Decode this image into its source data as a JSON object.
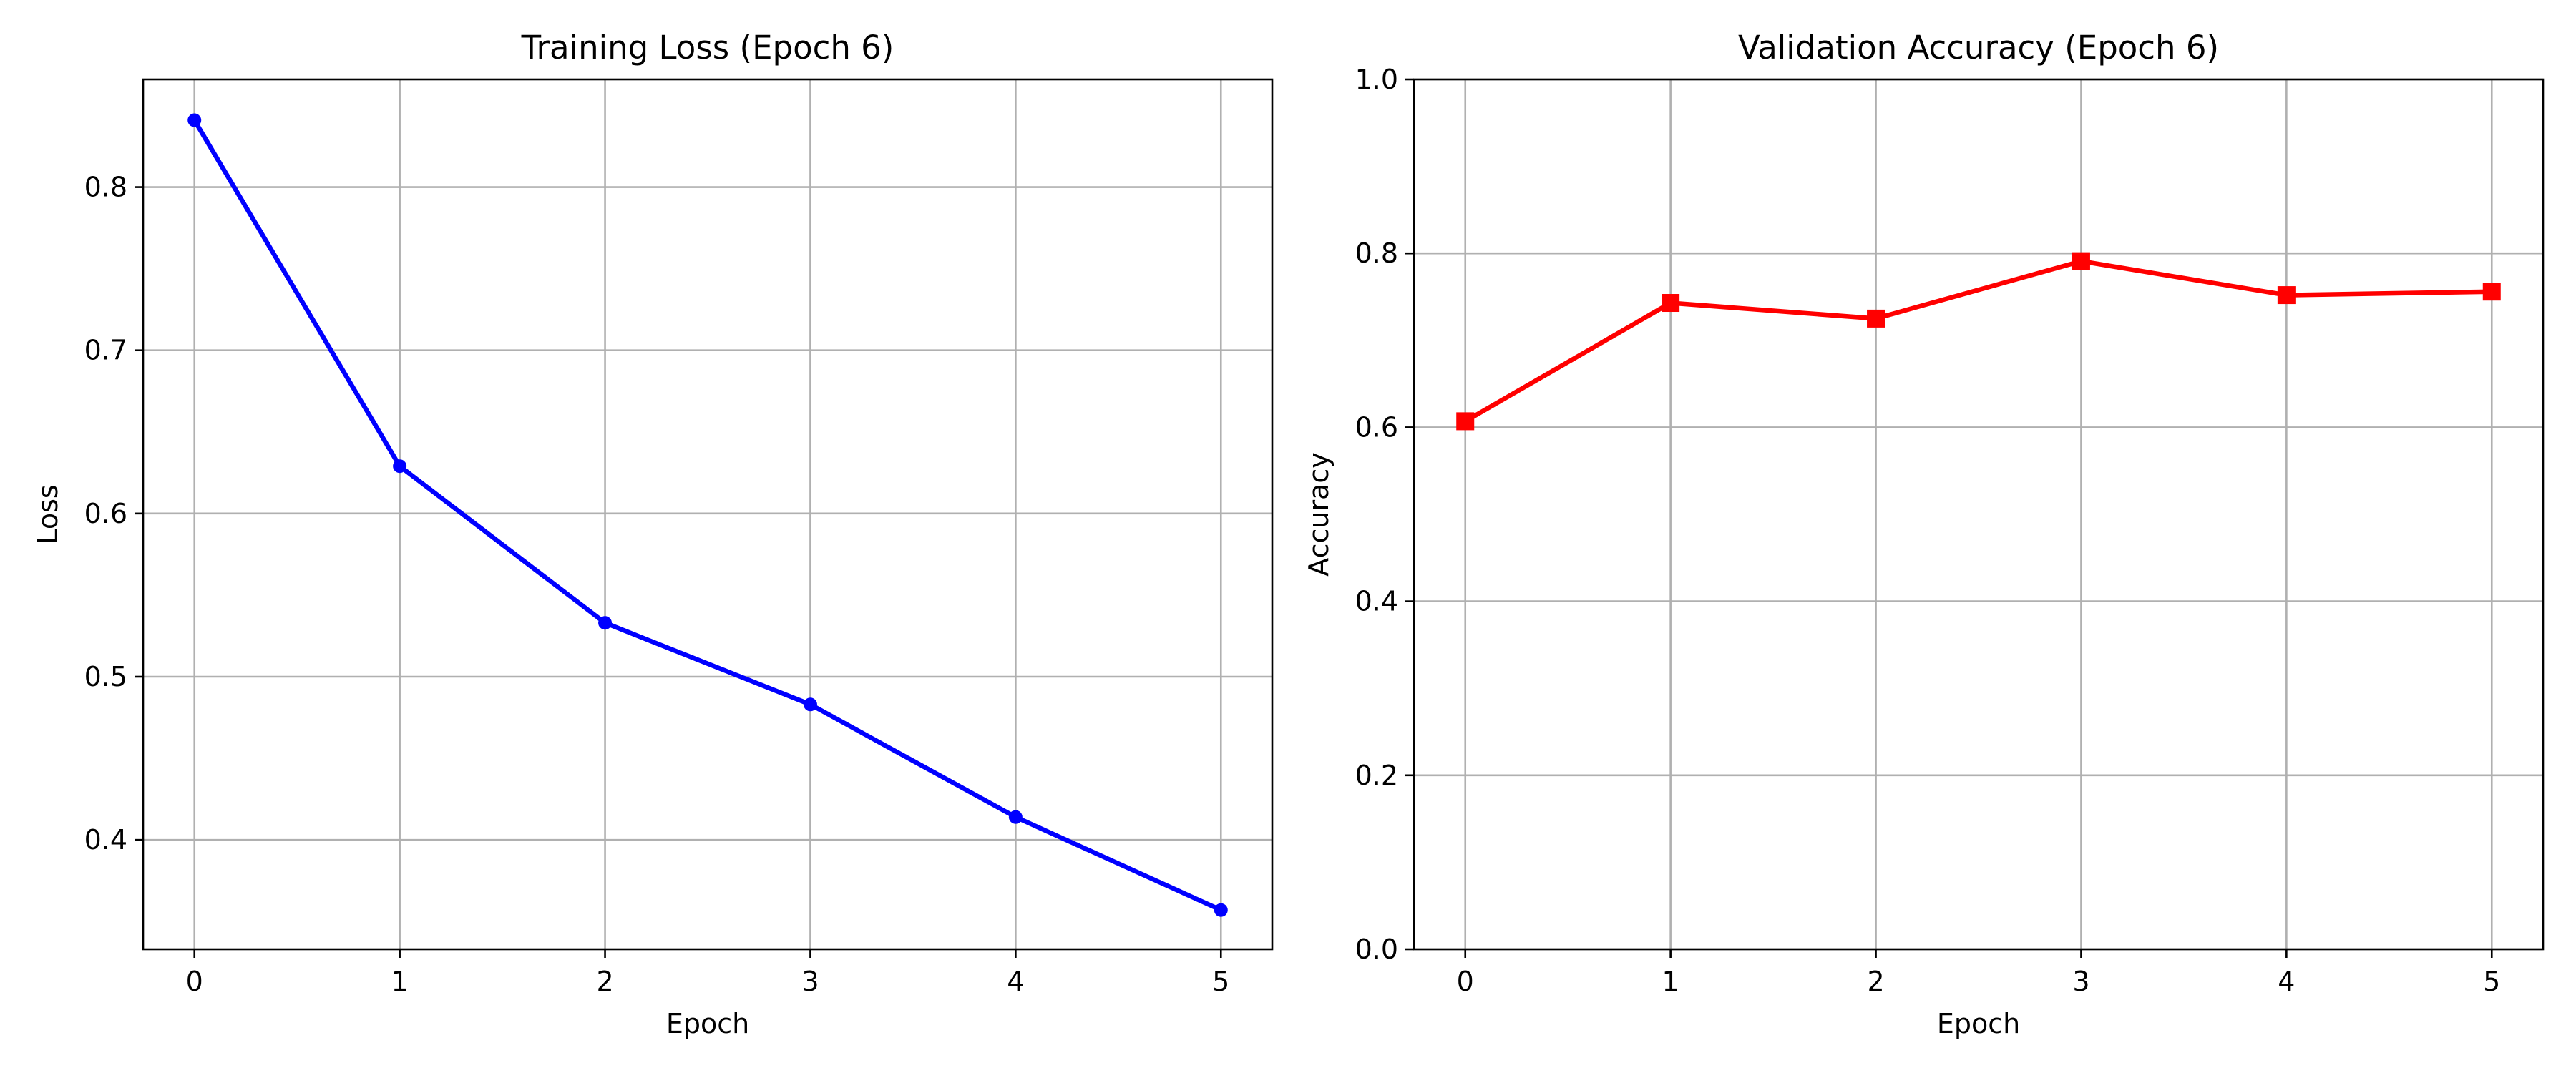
{
  "chart_data": [
    {
      "type": "line",
      "title": "Training Loss (Epoch 6)",
      "xlabel": "Epoch",
      "ylabel": "Loss",
      "x": [
        0,
        1,
        2,
        3,
        4,
        5
      ],
      "xlim": [
        -0.25,
        5.25
      ],
      "ylim": [
        0.333,
        0.866
      ],
      "xticks": [
        0,
        1,
        2,
        3,
        4,
        5
      ],
      "yticks": [
        0.4,
        0.5,
        0.6,
        0.7,
        0.8
      ],
      "ytick_labels": [
        "0.4",
        "0.5",
        "0.6",
        "0.7",
        "0.8"
      ],
      "grid": true,
      "series": [
        {
          "values": [
            0.841,
            0.629,
            0.533,
            0.483,
            0.414,
            0.357
          ],
          "color": "#0000ff",
          "marker": "circle"
        }
      ]
    },
    {
      "type": "line",
      "title": "Validation Accuracy (Epoch 6)",
      "xlabel": "Epoch",
      "ylabel": "Accuracy",
      "x": [
        0,
        1,
        2,
        3,
        4,
        5
      ],
      "xlim": [
        -0.25,
        5.25
      ],
      "ylim": [
        0.0,
        1.0
      ],
      "xticks": [
        0,
        1,
        2,
        3,
        4,
        5
      ],
      "yticks": [
        0.0,
        0.2,
        0.4,
        0.6,
        0.8,
        1.0
      ],
      "ytick_labels": [
        "0.0",
        "0.2",
        "0.4",
        "0.6",
        "0.8",
        "1.0"
      ],
      "grid": true,
      "series": [
        {
          "values": [
            0.607,
            0.743,
            0.725,
            0.791,
            0.752,
            0.756
          ],
          "color": "#ff0000",
          "marker": "square"
        }
      ]
    }
  ]
}
